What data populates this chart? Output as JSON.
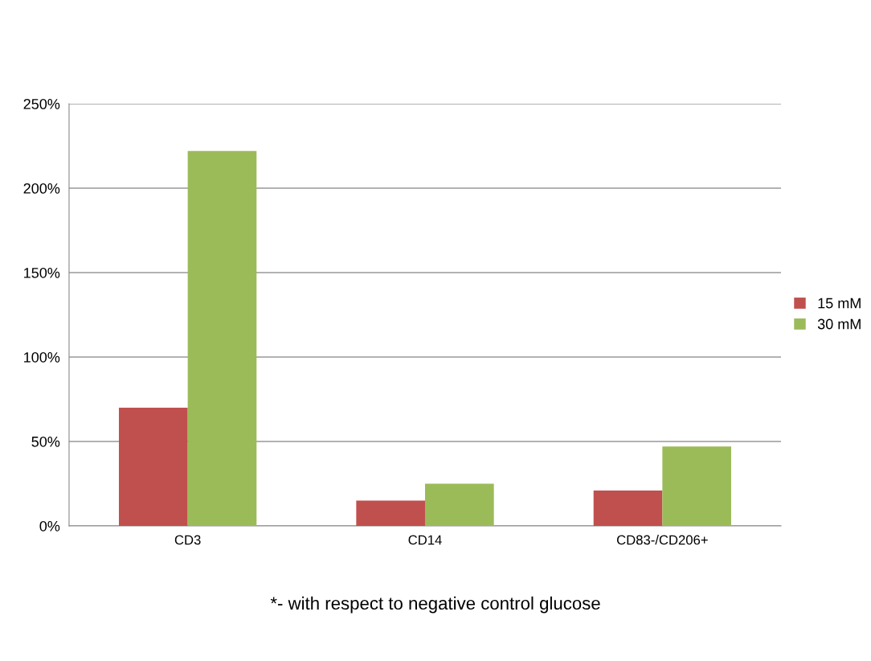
{
  "chart_data": {
    "type": "bar",
    "categories": [
      "CD3",
      "CD14",
      "CD83-/CD206+"
    ],
    "series": [
      {
        "name": "15 mM",
        "color": "#c0504d",
        "values": [
          70,
          15,
          21
        ]
      },
      {
        "name": "30 mM",
        "color": "#9bbb59",
        "values": [
          222,
          25,
          47
        ]
      }
    ],
    "ylim": [
      0,
      250
    ],
    "yticks": [
      {
        "value": 0,
        "label": "0%"
      },
      {
        "value": 50,
        "label": "50%"
      },
      {
        "value": 100,
        "label": "100%"
      },
      {
        "value": 150,
        "label": "150%"
      },
      {
        "value": 200,
        "label": "200%"
      },
      {
        "value": 250,
        "label": "250%"
      }
    ],
    "grid": "y",
    "legend": "right",
    "annotations": [
      "*- with respect to negative control glucose"
    ]
  }
}
